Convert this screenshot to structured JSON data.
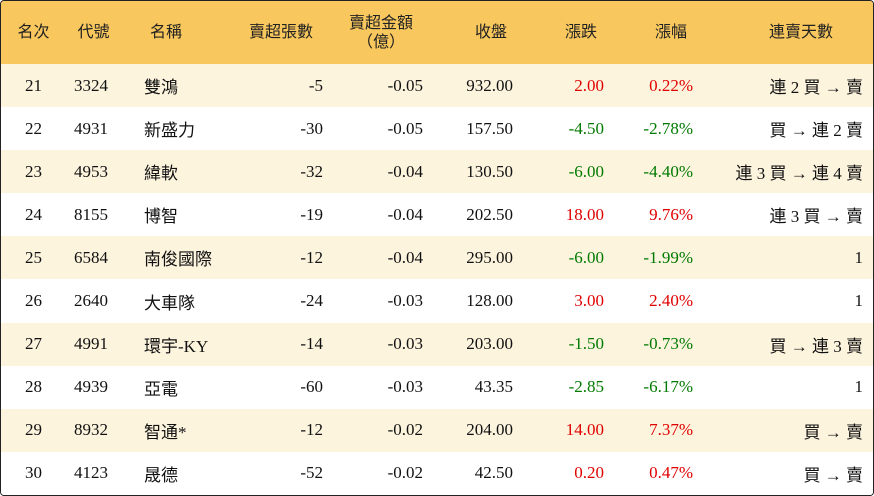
{
  "header": {
    "columns": [
      [
        "名次"
      ],
      [
        "代號"
      ],
      [
        "名稱"
      ],
      [
        "賣超張數"
      ],
      [
        "賣超金額",
        "（億）"
      ],
      [
        "收盤"
      ],
      [
        "漲跌"
      ],
      [
        "漲幅"
      ],
      [
        "連賣天數"
      ]
    ]
  },
  "table": {
    "rows": [
      {
        "cells": [
          "21",
          "3324",
          "雙鴻",
          "-5",
          "-0.05",
          "932.00",
          "2.00",
          "0.22%",
          "連 2 買 → 賣"
        ],
        "change_color": "#e00000"
      },
      {
        "cells": [
          "22",
          "4931",
          "新盛力",
          "-30",
          "-0.05",
          "157.50",
          "-4.50",
          "-2.78%",
          "買 → 連 2 賣"
        ],
        "change_color": "#007a00"
      },
      {
        "cells": [
          "23",
          "4953",
          "緯軟",
          "-32",
          "-0.04",
          "130.50",
          "-6.00",
          "-4.40%",
          "連 3 買 → 連 4 賣"
        ],
        "change_color": "#007a00"
      },
      {
        "cells": [
          "24",
          "8155",
          "博智",
          "-19",
          "-0.04",
          "202.50",
          "18.00",
          "9.76%",
          "連 3 買 → 賣"
        ],
        "change_color": "#e00000"
      },
      {
        "cells": [
          "25",
          "6584",
          "南俊國際",
          "-12",
          "-0.04",
          "295.00",
          "-6.00",
          "-1.99%",
          "1"
        ],
        "change_color": "#007a00"
      },
      {
        "cells": [
          "26",
          "2640",
          "大車隊",
          "-24",
          "-0.03",
          "128.00",
          "3.00",
          "2.40%",
          "1"
        ],
        "change_color": "#e00000"
      },
      {
        "cells": [
          "27",
          "4991",
          "環宇-KY",
          "-14",
          "-0.03",
          "203.00",
          "-1.50",
          "-0.73%",
          "買 → 連 3 賣"
        ],
        "change_color": "#007a00"
      },
      {
        "cells": [
          "28",
          "4939",
          "亞電",
          "-60",
          "-0.03",
          "43.35",
          "-2.85",
          "-6.17%",
          "1"
        ],
        "change_color": "#007a00"
      },
      {
        "cells": [
          "29",
          "8932",
          "智通*",
          "-12",
          "-0.02",
          "204.00",
          "14.00",
          "7.37%",
          "買 → 賣"
        ],
        "change_color": "#e00000"
      },
      {
        "cells": [
          "30",
          "4123",
          "晟德",
          "-52",
          "-0.02",
          "42.50",
          "0.20",
          "0.47%",
          "買 → 賣"
        ],
        "change_color": "#e00000"
      }
    ]
  }
}
